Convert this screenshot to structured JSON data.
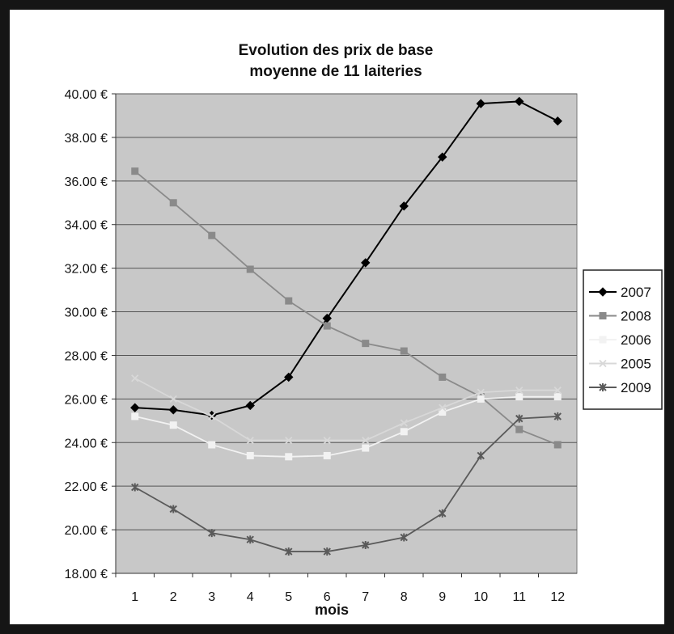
{
  "chart_data": {
    "type": "line",
    "title_lines": [
      "Evolution des prix de base",
      "moyenne de 11 laiteries"
    ],
    "xlabel": "mois",
    "ylabel": "",
    "x": [
      1,
      2,
      3,
      4,
      5,
      6,
      7,
      8,
      9,
      10,
      11,
      12
    ],
    "x_tick_labels": [
      "1",
      "2",
      "3",
      "4",
      "5",
      "6",
      "7",
      "8",
      "9",
      "10",
      "11",
      "12"
    ],
    "ylim": [
      18,
      40
    ],
    "y_tick_labels": [
      "40.00 €",
      "38.00 €",
      "36.00 €",
      "34.00 €",
      "32.00 €",
      "30.00 €",
      "28.00 €",
      "26.00 €",
      "24.00 €",
      "22.00 €",
      "20.00 €",
      "18.00 €"
    ],
    "y_ticks": [
      40,
      38,
      36,
      34,
      32,
      30,
      28,
      26,
      24,
      22,
      20,
      18
    ],
    "grid": true,
    "legend_position": "right",
    "plot_background": "#c8c8c8",
    "series": [
      {
        "name": "2007",
        "color": "#000000",
        "marker": "diamond",
        "values": [
          25.6,
          25.5,
          25.25,
          25.7,
          27.0,
          29.7,
          32.25,
          34.85,
          37.1,
          39.55,
          39.65,
          38.75
        ]
      },
      {
        "name": "2008",
        "color": "#8a8a8a",
        "marker": "square",
        "values": [
          36.45,
          35.0,
          33.5,
          31.95,
          30.5,
          29.35,
          28.55,
          28.2,
          27.0,
          26.1,
          24.6,
          23.9
        ]
      },
      {
        "name": "2006",
        "color": "#f2f2f2",
        "marker": "square",
        "values": [
          25.2,
          24.8,
          23.9,
          23.4,
          23.35,
          23.4,
          23.75,
          24.5,
          25.4,
          26.0,
          26.1,
          26.1
        ]
      },
      {
        "name": "2005",
        "color": "#d8d8d8",
        "marker": "x",
        "values": [
          26.95,
          26.0,
          25.2,
          24.1,
          24.1,
          24.1,
          24.1,
          24.9,
          25.6,
          26.3,
          26.4,
          26.4
        ]
      },
      {
        "name": "2009",
        "color": "#5a5a5a",
        "marker": "asterisk",
        "values": [
          21.95,
          20.95,
          19.85,
          19.55,
          19.0,
          19.0,
          19.3,
          19.65,
          20.75,
          23.4,
          25.1,
          25.2
        ]
      }
    ]
  }
}
